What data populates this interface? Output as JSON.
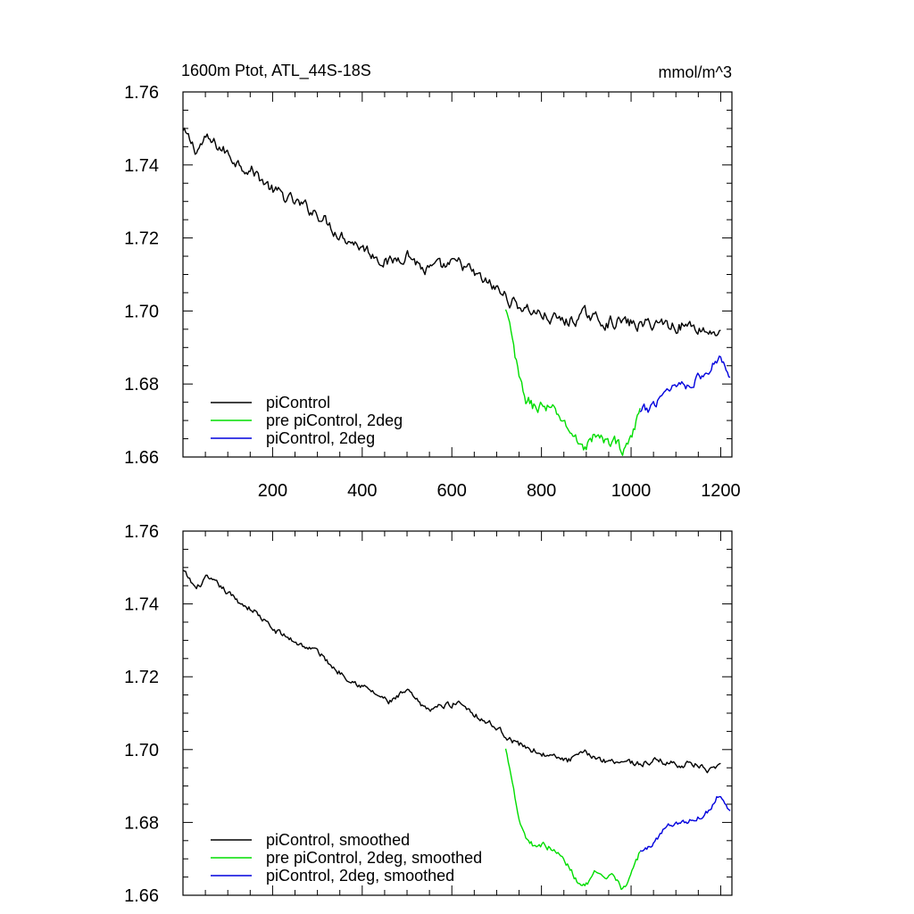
{
  "chart_data": [
    {
      "type": "line",
      "title": "1600m Ptot, ATL_44S-18S",
      "units": "mmol/m^3",
      "xlim": [
        0,
        1225
      ],
      "ylim": [
        1.66,
        1.76
      ],
      "xticks": [
        200,
        400,
        600,
        800,
        1000,
        1200
      ],
      "yticks": [
        1.66,
        1.68,
        1.7,
        1.72,
        1.74,
        1.76
      ],
      "ytick_labels": [
        "1.66",
        "1.68",
        "1.70",
        "1.72",
        "1.74",
        "1.76"
      ],
      "grid": false,
      "legend_position": "bottom-left",
      "series": [
        {
          "name": "piControl",
          "color": "#000000",
          "noise": 0.0018,
          "x": [
            0,
            30,
            50,
            80,
            120,
            160,
            200,
            260,
            300,
            340,
            380,
            420,
            460,
            500,
            540,
            580,
            620,
            660,
            700,
            740,
            780,
            820,
            860,
            900,
            940,
            980,
            1020,
            1060,
            1100,
            1140,
            1180,
            1200
          ],
          "y": [
            1.749,
            1.744,
            1.747,
            1.745,
            1.741,
            1.738,
            1.733,
            1.729,
            1.727,
            1.722,
            1.719,
            1.716,
            1.713,
            1.716,
            1.711,
            1.712,
            1.713,
            1.709,
            1.706,
            1.702,
            1.7,
            1.698,
            1.697,
            1.699,
            1.697,
            1.697,
            1.696,
            1.697,
            1.696,
            1.696,
            1.694,
            1.695
          ]
        },
        {
          "name": "pre piControl, 2deg",
          "color": "#00dd00",
          "noise": 0.0018,
          "x": [
            720,
            735,
            750,
            765,
            780,
            800,
            820,
            840,
            860,
            880,
            900,
            920,
            940,
            960,
            980,
            1000,
            1020
          ],
          "y": [
            1.7,
            1.692,
            1.681,
            1.676,
            1.674,
            1.674,
            1.673,
            1.671,
            1.668,
            1.664,
            1.663,
            1.666,
            1.664,
            1.665,
            1.662,
            1.665,
            1.672
          ]
        },
        {
          "name": "piControl, 2deg",
          "color": "#0000dd",
          "noise": 0.0016,
          "x": [
            1020,
            1040,
            1060,
            1080,
            1100,
            1120,
            1140,
            1160,
            1180,
            1190,
            1200,
            1210,
            1222
          ],
          "y": [
            1.672,
            1.673,
            1.676,
            1.679,
            1.68,
            1.68,
            1.681,
            1.682,
            1.684,
            1.687,
            1.688,
            1.685,
            1.683
          ]
        }
      ]
    },
    {
      "type": "line",
      "title": "",
      "xlim": [
        0,
        1225
      ],
      "ylim": [
        1.66,
        1.76
      ],
      "xticks": [
        200,
        400,
        600,
        800,
        1000,
        1200
      ],
      "yticks": [
        1.66,
        1.68,
        1.7,
        1.72,
        1.74,
        1.76
      ],
      "ytick_labels": [
        "1.66",
        "1.68",
        "1.70",
        "1.72",
        "1.74",
        "1.76"
      ],
      "grid": false,
      "legend_position": "bottom-left",
      "series": [
        {
          "name": "piControl, smoothed",
          "color": "#000000",
          "noise": 0.0009,
          "x": [
            0,
            30,
            50,
            80,
            120,
            160,
            200,
            260,
            300,
            340,
            380,
            420,
            460,
            500,
            540,
            580,
            620,
            660,
            700,
            740,
            780,
            820,
            860,
            900,
            940,
            980,
            1020,
            1060,
            1100,
            1140,
            1180,
            1200
          ],
          "y": [
            1.749,
            1.744,
            1.747,
            1.745,
            1.741,
            1.738,
            1.733,
            1.729,
            1.727,
            1.722,
            1.719,
            1.716,
            1.713,
            1.716,
            1.711,
            1.712,
            1.713,
            1.709,
            1.706,
            1.702,
            1.7,
            1.698,
            1.697,
            1.699,
            1.697,
            1.697,
            1.696,
            1.697,
            1.696,
            1.696,
            1.694,
            1.695
          ]
        },
        {
          "name": "pre piControl, 2deg, smoothed",
          "color": "#00dd00",
          "noise": 0.0009,
          "x": [
            720,
            735,
            750,
            765,
            780,
            800,
            820,
            840,
            860,
            880,
            900,
            920,
            940,
            960,
            980,
            1000,
            1020
          ],
          "y": [
            1.7,
            1.692,
            1.681,
            1.676,
            1.674,
            1.674,
            1.673,
            1.671,
            1.668,
            1.664,
            1.663,
            1.666,
            1.664,
            1.665,
            1.662,
            1.665,
            1.672
          ]
        },
        {
          "name": "piControl, 2deg, smoothed",
          "color": "#0000dd",
          "noise": 0.0008,
          "x": [
            1020,
            1040,
            1060,
            1080,
            1100,
            1120,
            1140,
            1160,
            1180,
            1190,
            1200,
            1210,
            1222
          ],
          "y": [
            1.672,
            1.673,
            1.676,
            1.679,
            1.68,
            1.68,
            1.681,
            1.682,
            1.684,
            1.687,
            1.688,
            1.685,
            1.683
          ]
        }
      ]
    }
  ]
}
